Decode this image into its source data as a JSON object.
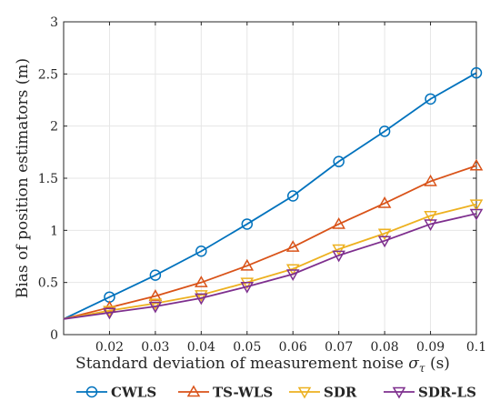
{
  "chart_data": {
    "type": "line",
    "x": [
      0.01,
      0.02,
      0.03,
      0.04,
      0.05,
      0.06,
      0.07,
      0.08,
      0.09,
      0.1
    ],
    "xlim": [
      0.01,
      0.1
    ],
    "ylim": [
      0,
      3
    ],
    "xticks": [
      "0.02",
      "0.03",
      "0.04",
      "0.05",
      "0.06",
      "0.07",
      "0.08",
      "0.09",
      "0.1"
    ],
    "xtick_values": [
      0.02,
      0.03,
      0.04,
      0.05,
      0.06,
      0.07,
      0.08,
      0.09,
      0.1
    ],
    "yticks": [
      "0",
      "0.5",
      "1",
      "1.5",
      "2",
      "2.5",
      "3"
    ],
    "ytick_values": [
      0,
      0.5,
      1,
      1.5,
      2,
      2.5,
      3
    ],
    "xlabel_prefix": "Standard deviation of measurement noise ",
    "xlabel_symbol": "σ",
    "xlabel_subscript": "τ",
    "xlabel_suffix": " (s)",
    "ylabel": "Bias of position estimators (m)",
    "grid": true,
    "legend_position": "bottom",
    "series": [
      {
        "name": "CWLS",
        "color": "#0072BD",
        "marker": "circle",
        "values": [
          0.15,
          0.36,
          0.57,
          0.8,
          1.06,
          1.33,
          1.66,
          1.95,
          2.26,
          2.51
        ]
      },
      {
        "name": "TS-WLS",
        "color": "#D95319",
        "marker": "triangle-up",
        "values": [
          0.15,
          0.26,
          0.37,
          0.5,
          0.66,
          0.84,
          1.06,
          1.26,
          1.47,
          1.62
        ]
      },
      {
        "name": "SDR",
        "color": "#EDB120",
        "marker": "triangle-down",
        "values": [
          0.15,
          0.23,
          0.3,
          0.38,
          0.5,
          0.63,
          0.82,
          0.97,
          1.14,
          1.25
        ]
      },
      {
        "name": "SDR-LS",
        "color": "#7E2F8E",
        "marker": "triangle-down",
        "values": [
          0.15,
          0.21,
          0.27,
          0.35,
          0.46,
          0.58,
          0.76,
          0.9,
          1.06,
          1.16
        ]
      }
    ]
  }
}
